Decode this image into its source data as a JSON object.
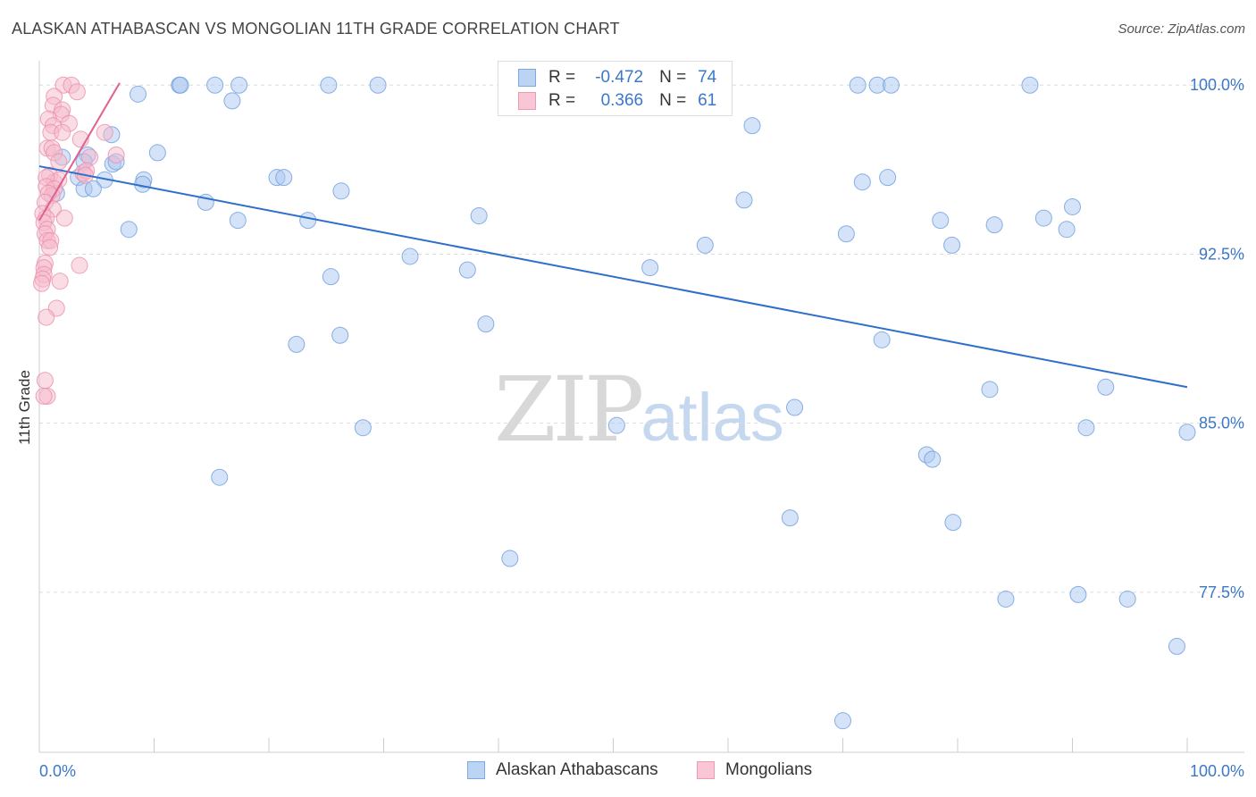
{
  "header": {
    "title": "ALASKAN ATHABASCAN VS MONGOLIAN 11TH GRADE CORRELATION CHART",
    "source": "Source: ZipAtlas.com"
  },
  "watermark": {
    "zip": "ZIP",
    "atlas": "atlas"
  },
  "legend": {
    "r_label": "R =",
    "n_label": "N =",
    "series": [
      {
        "name": "Alaskan Athabascans",
        "r": "-0.472",
        "n": "74"
      },
      {
        "name": "Mongolians",
        "r": "0.366",
        "n": "61"
      }
    ]
  },
  "chart_data": {
    "type": "scatter",
    "title": "ALASKAN ATHABASCAN VS MONGOLIAN 11TH GRADE CORRELATION CHART",
    "xlabel": "",
    "ylabel": "11th Grade",
    "xlim": [
      0,
      100
    ],
    "ylim": [
      70.4,
      101.0
    ],
    "x_tick_labels": [
      "0.0%",
      "100.0%"
    ],
    "y_ticks": [
      77.5,
      85.0,
      92.5,
      100.0
    ],
    "y_tick_labels": [
      "77.5%",
      "85.0%",
      "92.5%",
      "100.0%"
    ],
    "grid": true,
    "colors": {
      "blue_fill": "#a9c8ef",
      "blue_stroke": "#6e9edd",
      "blue_line": "#2f6fcc",
      "pink_fill": "#f6b9cc",
      "pink_stroke": "#eb8fab",
      "pink_line": "#e0608e"
    },
    "series": [
      {
        "name": "Alaskan Athabascans",
        "color": "blue",
        "trend": {
          "x": [
            0,
            100
          ],
          "y": [
            96.4,
            86.6
          ]
        },
        "points": [
          [
            12.2,
            100
          ],
          [
            12.3,
            100
          ],
          [
            15.3,
            100
          ],
          [
            17.4,
            100
          ],
          [
            25.2,
            100
          ],
          [
            29.5,
            100
          ],
          [
            71.3,
            100
          ],
          [
            73.0,
            100
          ],
          [
            74.2,
            100
          ],
          [
            86.3,
            100
          ],
          [
            8.6,
            99.6
          ],
          [
            16.8,
            99.3
          ],
          [
            6.3,
            97.8
          ],
          [
            62.1,
            98.2
          ],
          [
            10.3,
            97.0
          ],
          [
            4.2,
            96.9
          ],
          [
            3.9,
            96.6
          ],
          [
            6.4,
            96.5
          ],
          [
            6.7,
            96.6
          ],
          [
            2.0,
            96.8
          ],
          [
            5.7,
            95.8
          ],
          [
            9.1,
            95.8
          ],
          [
            3.4,
            95.9
          ],
          [
            9.0,
            95.6
          ],
          [
            20.7,
            95.9
          ],
          [
            21.3,
            95.9
          ],
          [
            71.7,
            95.7
          ],
          [
            73.9,
            95.9
          ],
          [
            1.5,
            95.2
          ],
          [
            3.9,
            95.4
          ],
          [
            4.7,
            95.4
          ],
          [
            26.3,
            95.3
          ],
          [
            14.5,
            94.8
          ],
          [
            61.4,
            94.9
          ],
          [
            90.0,
            94.6
          ],
          [
            38.3,
            94.2
          ],
          [
            17.3,
            94.0
          ],
          [
            23.4,
            94.0
          ],
          [
            78.5,
            94.0
          ],
          [
            87.5,
            94.1
          ],
          [
            83.2,
            93.8
          ],
          [
            89.5,
            93.6
          ],
          [
            7.8,
            93.6
          ],
          [
            70.3,
            93.4
          ],
          [
            58.0,
            92.9
          ],
          [
            79.5,
            92.9
          ],
          [
            32.3,
            92.4
          ],
          [
            53.2,
            91.9
          ],
          [
            37.3,
            91.8
          ],
          [
            25.4,
            91.5
          ],
          [
            38.9,
            89.4
          ],
          [
            26.2,
            88.9
          ],
          [
            73.4,
            88.7
          ],
          [
            22.4,
            88.5
          ],
          [
            82.8,
            86.5
          ],
          [
            92.9,
            86.6
          ],
          [
            65.8,
            85.7
          ],
          [
            28.2,
            84.8
          ],
          [
            50.3,
            84.9
          ],
          [
            91.2,
            84.8
          ],
          [
            100.0,
            84.6
          ],
          [
            77.3,
            83.6
          ],
          [
            77.8,
            83.4
          ],
          [
            15.7,
            82.6
          ],
          [
            65.4,
            80.8
          ],
          [
            79.6,
            80.6
          ],
          [
            41.0,
            79.0
          ],
          [
            84.2,
            77.2
          ],
          [
            94.8,
            77.2
          ],
          [
            90.5,
            77.4
          ],
          [
            99.1,
            75.1
          ],
          [
            70.0,
            71.8
          ]
        ]
      },
      {
        "name": "Mongolians",
        "color": "pink",
        "trend": {
          "x": [
            0,
            7.0
          ],
          "y": [
            94.0,
            100.1
          ]
        },
        "points": [
          [
            2.1,
            100
          ],
          [
            2.8,
            100
          ],
          [
            3.3,
            99.7
          ],
          [
            1.3,
            99.5
          ],
          [
            1.2,
            99.1
          ],
          [
            2.0,
            98.9
          ],
          [
            1.9,
            98.7
          ],
          [
            0.8,
            98.5
          ],
          [
            2.6,
            98.3
          ],
          [
            1.2,
            98.2
          ],
          [
            1.0,
            97.9
          ],
          [
            2.0,
            97.9
          ],
          [
            5.7,
            97.9
          ],
          [
            3.6,
            97.6
          ],
          [
            0.7,
            97.2
          ],
          [
            1.1,
            97.2
          ],
          [
            1.3,
            97.0
          ],
          [
            4.4,
            96.8
          ],
          [
            1.7,
            96.6
          ],
          [
            6.7,
            96.9
          ],
          [
            3.8,
            96.1
          ],
          [
            4.1,
            96.2
          ],
          [
            4.0,
            96.0
          ],
          [
            0.9,
            96.0
          ],
          [
            1.3,
            95.7
          ],
          [
            1.7,
            95.8
          ],
          [
            0.6,
            95.9
          ],
          [
            0.6,
            95.5
          ],
          [
            1.3,
            95.4
          ],
          [
            1.1,
            95.1
          ],
          [
            0.8,
            95.2
          ],
          [
            0.5,
            94.8
          ],
          [
            1.2,
            94.5
          ],
          [
            0.3,
            94.3
          ],
          [
            0.6,
            94.1
          ],
          [
            2.2,
            94.1
          ],
          [
            0.4,
            93.9
          ],
          [
            0.7,
            93.6
          ],
          [
            0.5,
            93.4
          ],
          [
            0.7,
            93.1
          ],
          [
            1.0,
            93.1
          ],
          [
            0.9,
            92.8
          ],
          [
            3.5,
            92.0
          ],
          [
            0.5,
            92.1
          ],
          [
            0.4,
            91.9
          ],
          [
            0.4,
            91.6
          ],
          [
            0.3,
            91.4
          ],
          [
            0.2,
            91.2
          ],
          [
            1.8,
            91.3
          ],
          [
            1.5,
            90.1
          ],
          [
            0.6,
            89.7
          ],
          [
            0.5,
            86.9
          ],
          [
            0.7,
            86.2
          ],
          [
            0.4,
            86.2
          ]
        ]
      }
    ]
  }
}
